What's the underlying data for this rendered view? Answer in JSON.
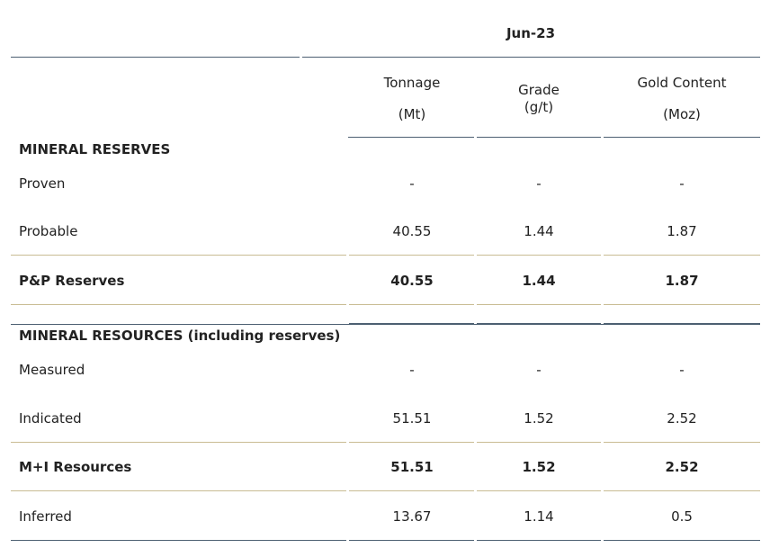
{
  "header": {
    "period": "Jun-23"
  },
  "columns": [
    {
      "name": "Tonnage",
      "unit": "(Mt)"
    },
    {
      "name": "Grade",
      "unit": "(g/t)"
    },
    {
      "name": "Gold Content",
      "unit": "(Moz)"
    }
  ],
  "sections": [
    {
      "title": "MINERAL RESERVES",
      "rows": [
        {
          "label": "Proven",
          "values": [
            "-",
            "-",
            "-"
          ]
        },
        {
          "label": "Probable",
          "values": [
            "40.55",
            "1.44",
            "1.87"
          ]
        },
        {
          "label": "P&P Reserves",
          "values": [
            "40.55",
            "1.44",
            "1.87"
          ]
        }
      ]
    },
    {
      "title": "MINERAL RESOURCES (including reserves)",
      "rows": [
        {
          "label": "Measured",
          "values": [
            "-",
            "-",
            "-"
          ]
        },
        {
          "label": "Indicated",
          "values": [
            "51.51",
            "1.52",
            "2.52"
          ]
        },
        {
          "label": "M+I Resources",
          "values": [
            "51.51",
            "1.52",
            "2.52"
          ]
        },
        {
          "label": "Inferred",
          "values": [
            "13.67",
            "1.14",
            "0.5"
          ]
        }
      ]
    }
  ]
}
